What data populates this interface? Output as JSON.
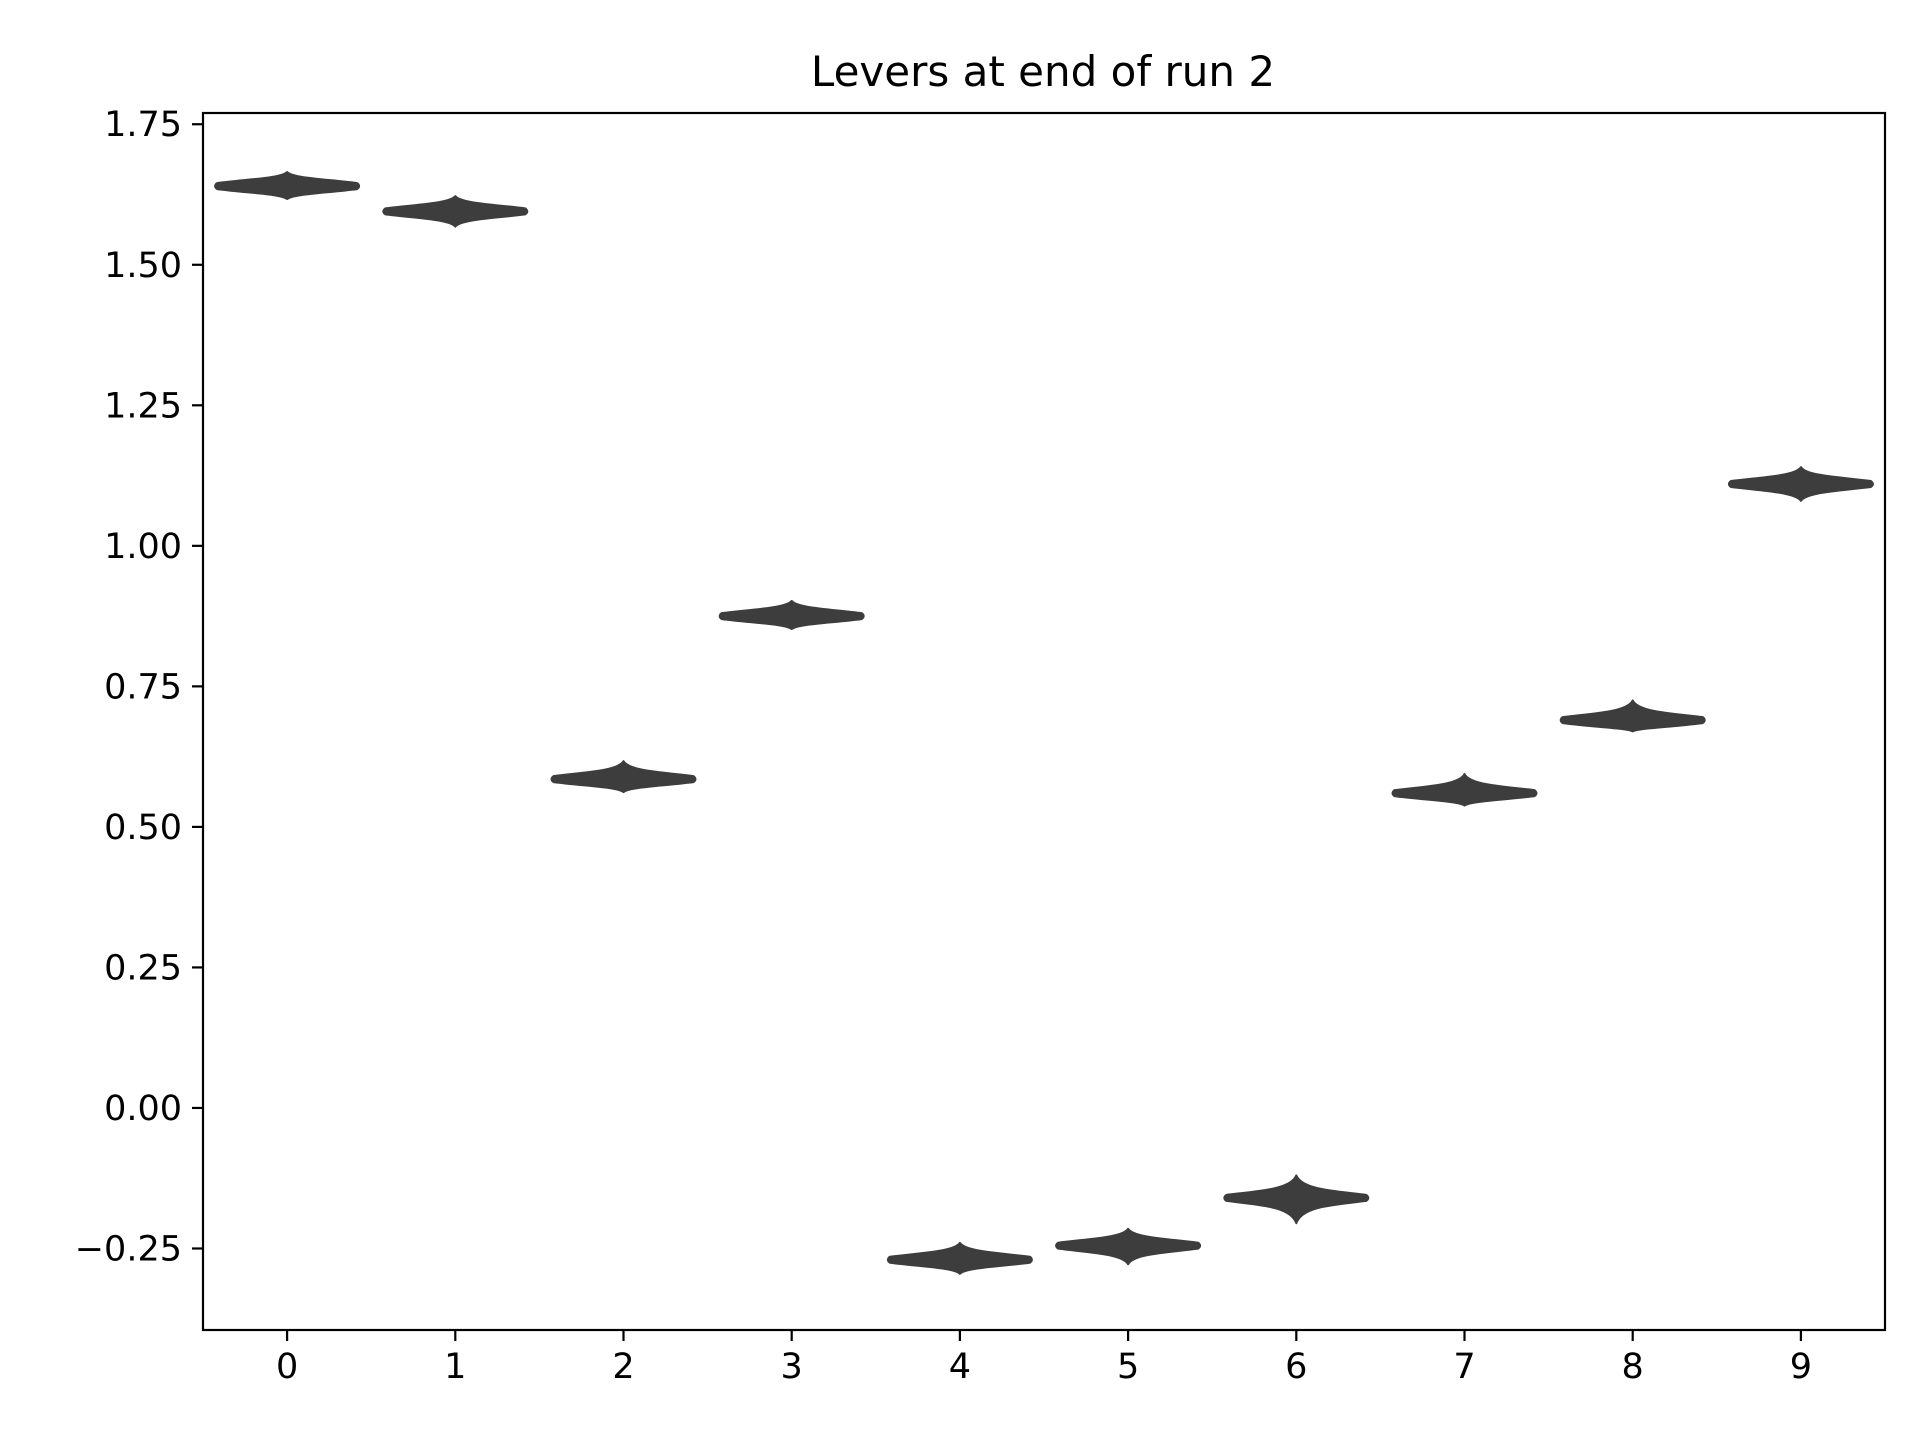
{
  "chart_data": {
    "type": "violin",
    "title": "Levers at end of run 2",
    "xlabel": "",
    "ylabel": "",
    "categories": [
      "0",
      "1",
      "2",
      "3",
      "4",
      "5",
      "6",
      "7",
      "8",
      "9"
    ],
    "series": [
      {
        "values": [
          1.64,
          1.595,
          0.585,
          0.875,
          -0.27,
          -0.245,
          -0.16,
          0.56,
          0.69,
          1.11
        ],
        "min": [
          1.617,
          1.568,
          0.562,
          0.852,
          -0.295,
          -0.278,
          -0.205,
          0.538,
          0.67,
          1.08
        ],
        "max": [
          1.665,
          1.622,
          0.617,
          0.902,
          -0.24,
          -0.215,
          -0.12,
          0.594,
          0.725,
          1.14
        ]
      }
    ],
    "xlim": [
      -0.5,
      9.5
    ],
    "ylim": [
      -0.395,
      1.77
    ],
    "yticks": [
      "−0.25",
      "0.00",
      "0.25",
      "0.50",
      "0.75",
      "1.00",
      "1.25",
      "1.50",
      "1.75"
    ],
    "ytick_values": [
      -0.25,
      0.0,
      0.25,
      0.5,
      0.75,
      1.0,
      1.25,
      1.5,
      1.75
    ],
    "grid": false,
    "legend": "none",
    "colors": {
      "violin": "#3d3d3d",
      "axes": "#000000",
      "background": "#ffffff"
    }
  }
}
